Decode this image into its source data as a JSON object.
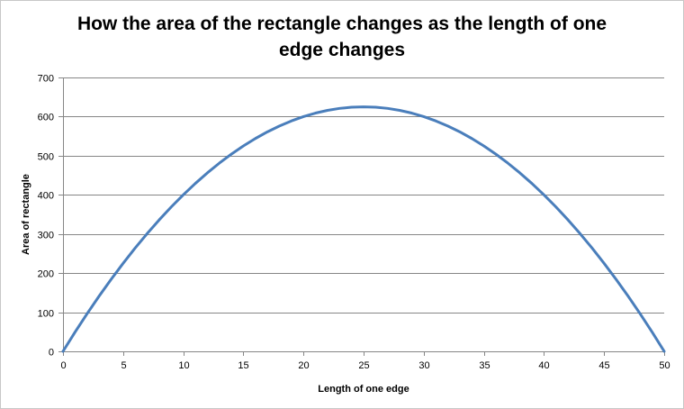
{
  "chart_data": {
    "type": "line",
    "title": "How the area of the rectangle changes as the length of one edge changes",
    "xlabel": "Length of one edge",
    "ylabel": "Area of rectangle",
    "xlim": [
      0,
      50
    ],
    "ylim": [
      0,
      700
    ],
    "xticks": [
      0,
      5,
      10,
      15,
      20,
      25,
      30,
      35,
      40,
      45,
      50
    ],
    "yticks": [
      0,
      100,
      200,
      300,
      400,
      500,
      600,
      700
    ],
    "grid": true,
    "legend": "none",
    "series": [
      {
        "color": "#4a7ebb",
        "x": [
          0,
          1,
          2,
          3,
          4,
          5,
          6,
          7,
          8,
          9,
          10,
          11,
          12,
          13,
          14,
          15,
          16,
          17,
          18,
          19,
          20,
          21,
          22,
          23,
          24,
          25,
          26,
          27,
          28,
          29,
          30,
          31,
          32,
          33,
          34,
          35,
          36,
          37,
          38,
          39,
          40,
          41,
          42,
          43,
          44,
          45,
          46,
          47,
          48,
          49,
          50
        ],
        "y": [
          0,
          49,
          96,
          141,
          184,
          225,
          264,
          301,
          336,
          369,
          400,
          429,
          456,
          481,
          504,
          525,
          544,
          561,
          576,
          589,
          600,
          609,
          616,
          621,
          624,
          625,
          624,
          621,
          616,
          609,
          600,
          589,
          576,
          561,
          544,
          525,
          504,
          481,
          456,
          429,
          400,
          369,
          336,
          301,
          264,
          225,
          184,
          141,
          96,
          49,
          0
        ]
      }
    ]
  },
  "colors": {
    "line": "#4a7ebb",
    "grid": "#868686",
    "axis": "#868686"
  }
}
